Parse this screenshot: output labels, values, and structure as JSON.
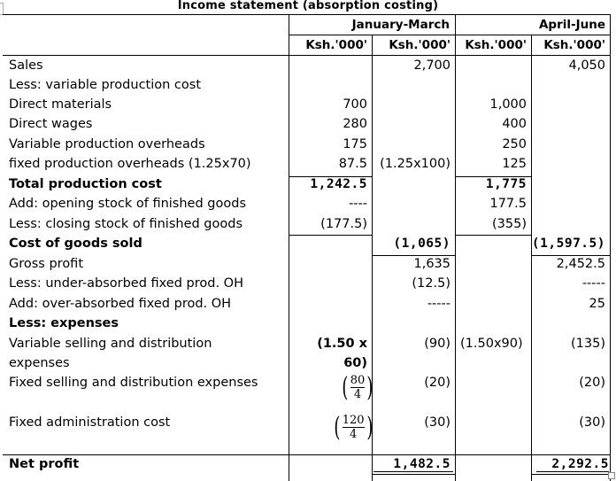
{
  "title": "Income statement (absorption costing)",
  "header": {
    "period1": "January-March",
    "period2": "April-June",
    "currency_labels": [
      "Ksh.'000'",
      "Ksh.'000'",
      "Ksh.'000'",
      "Ksh.'000'"
    ]
  },
  "rows": [
    {
      "label": "Sales",
      "c1": "",
      "c2": "2,700",
      "c3": "",
      "c4": "4,050"
    },
    {
      "label": "Less: variable production cost",
      "c1": "",
      "c2": "",
      "c3": "",
      "c4": ""
    },
    {
      "label": "Direct materials",
      "c1": "700",
      "c2": "",
      "c3": "1,000",
      "c4": ""
    },
    {
      "label": "Direct wages",
      "c1": "280",
      "c2": "",
      "c3": "400",
      "c4": ""
    },
    {
      "label": "Variable production overheads",
      "c1": "175",
      "c2": "",
      "c3": "250",
      "c4": ""
    },
    {
      "label": "fixed production overheads (1.25x70)",
      "c1": "87.5",
      "c2": "(1.25x100)",
      "c3": "125",
      "c4": ""
    },
    {
      "label": "Total production cost",
      "c1": "1,242.5",
      "c2": "",
      "c3": "1,775",
      "c4": ""
    },
    {
      "label": "Add: opening stock of finished goods",
      "c1": "----",
      "c2": "",
      "c3": "177.5",
      "c4": ""
    },
    {
      "label": "Less: closing stock of finished goods",
      "c1": "(177.5)",
      "c2": "",
      "c3": "(355)",
      "c4": ""
    },
    {
      "label": "Cost of goods sold",
      "c1": "",
      "c2": "(1,065)",
      "c3": "",
      "c4": "(1,597.5)"
    },
    {
      "label": "Gross profit",
      "c1": "",
      "c2": "1,635",
      "c3": "",
      "c4": "2,452.5"
    },
    {
      "label": "Less: under-absorbed fixed prod. OH",
      "c1": "",
      "c2": "(12.5)",
      "c3": "",
      "c4": "-----"
    },
    {
      "label": "Add: over-absorbed fixed prod. OH",
      "c1": "",
      "c2": "-----",
      "c3": "",
      "c4": "25"
    },
    {
      "label": "Less: expenses",
      "c1": "",
      "c2": "",
      "c3": "",
      "c4": ""
    },
    {
      "label": "Variable selling and distribution",
      "c1": "(1.50 x",
      "c2": "(90)",
      "c3": "(1.50x90)",
      "c4": "(135)"
    },
    {
      "label": "expenses",
      "c1": "60)",
      "c2": "",
      "c3": "",
      "c4": ""
    },
    {
      "label": "Fixed selling and distribution expenses",
      "c1": "",
      "c2": "(20)",
      "c3": "",
      "c4": "(20)"
    },
    {
      "label": "Fixed administration cost",
      "c1": "",
      "c2": "(30)",
      "c3": "",
      "c4": "(30)"
    }
  ],
  "fractions": {
    "fixed_selling": {
      "numerator": "80",
      "denominator": "4"
    },
    "fixed_admin": {
      "numerator": "120",
      "denominator": "4"
    }
  },
  "net_profit": {
    "label": "Net profit",
    "c2": "1,482.5",
    "c4": "2,292.5"
  }
}
